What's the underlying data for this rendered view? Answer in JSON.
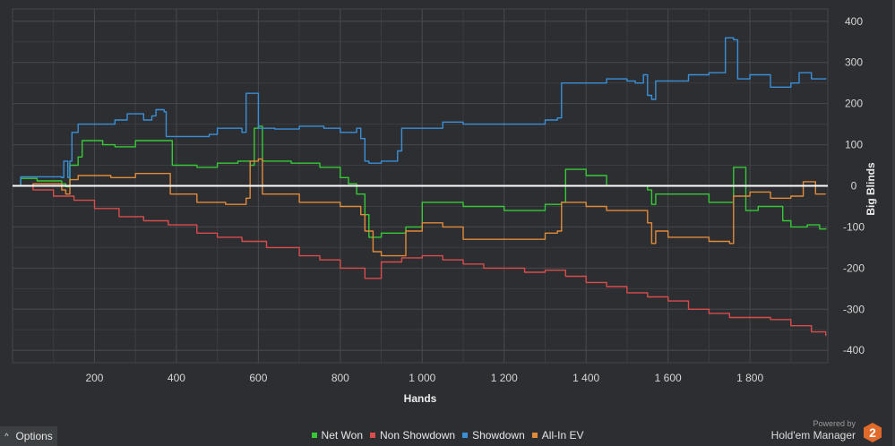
{
  "chart_data": {
    "type": "line",
    "xlabel": "Hands",
    "ylabel": "Big Blinds",
    "xlim": [
      0,
      1990
    ],
    "ylim": [
      -430,
      430
    ],
    "x_ticks": [
      200,
      400,
      600,
      800,
      1000,
      1200,
      1400,
      1600,
      1800
    ],
    "x_tick_labels": [
      "200",
      "400",
      "600",
      "800",
      "1 000",
      "1 200",
      "1 400",
      "1 600",
      "1 800"
    ],
    "y_ticks": [
      400,
      300,
      200,
      100,
      0,
      -100,
      -200,
      -300,
      -400
    ],
    "y_tick_labels": [
      "400",
      "300",
      "200",
      "100",
      "0",
      "-100",
      "-200",
      "-300",
      "-400"
    ],
    "grid": true,
    "legend_position": "bottom",
    "series": [
      {
        "name": "Net Won",
        "color": "#37c837",
        "points": [
          [
            0,
            0
          ],
          [
            20,
            18
          ],
          [
            60,
            12
          ],
          [
            120,
            5
          ],
          [
            130,
            -2
          ],
          [
            140,
            50
          ],
          [
            160,
            70
          ],
          [
            170,
            110
          ],
          [
            220,
            100
          ],
          [
            250,
            95
          ],
          [
            300,
            110
          ],
          [
            380,
            110
          ],
          [
            390,
            50
          ],
          [
            450,
            45
          ],
          [
            500,
            55
          ],
          [
            550,
            60
          ],
          [
            580,
            50
          ],
          [
            590,
            140
          ],
          [
            600,
            145
          ],
          [
            610,
            60
          ],
          [
            680,
            55
          ],
          [
            750,
            45
          ],
          [
            800,
            20
          ],
          [
            820,
            5
          ],
          [
            840,
            -20
          ],
          [
            860,
            -70
          ],
          [
            870,
            -125
          ],
          [
            900,
            -115
          ],
          [
            960,
            -100
          ],
          [
            1000,
            -40
          ],
          [
            1100,
            -50
          ],
          [
            1200,
            -60
          ],
          [
            1300,
            -45
          ],
          [
            1340,
            -40
          ],
          [
            1350,
            40
          ],
          [
            1400,
            25
          ],
          [
            1450,
            0
          ],
          [
            1550,
            -10
          ],
          [
            1560,
            -45
          ],
          [
            1570,
            -20
          ],
          [
            1620,
            -20
          ],
          [
            1700,
            -40
          ],
          [
            1750,
            -40
          ],
          [
            1760,
            45
          ],
          [
            1780,
            45
          ],
          [
            1790,
            -60
          ],
          [
            1820,
            -50
          ],
          [
            1880,
            -85
          ],
          [
            1900,
            -100
          ],
          [
            1940,
            -95
          ],
          [
            1970,
            -105
          ],
          [
            1985,
            -103
          ]
        ]
      },
      {
        "name": "Non Showdown",
        "color": "#d84c4c",
        "points": [
          [
            0,
            0
          ],
          [
            50,
            -10
          ],
          [
            100,
            -25
          ],
          [
            150,
            -35
          ],
          [
            200,
            -55
          ],
          [
            260,
            -75
          ],
          [
            320,
            -85
          ],
          [
            380,
            -95
          ],
          [
            450,
            -115
          ],
          [
            500,
            -125
          ],
          [
            560,
            -135
          ],
          [
            620,
            -150
          ],
          [
            700,
            -170
          ],
          [
            750,
            -180
          ],
          [
            800,
            -200
          ],
          [
            860,
            -225
          ],
          [
            900,
            -185
          ],
          [
            950,
            -175
          ],
          [
            1000,
            -170
          ],
          [
            1050,
            -180
          ],
          [
            1100,
            -190
          ],
          [
            1150,
            -200
          ],
          [
            1200,
            -200
          ],
          [
            1250,
            -210
          ],
          [
            1300,
            -205
          ],
          [
            1350,
            -220
          ],
          [
            1400,
            -235
          ],
          [
            1450,
            -245
          ],
          [
            1500,
            -260
          ],
          [
            1550,
            -270
          ],
          [
            1600,
            -280
          ],
          [
            1650,
            -300
          ],
          [
            1700,
            -310
          ],
          [
            1750,
            -320
          ],
          [
            1800,
            -320
          ],
          [
            1850,
            -325
          ],
          [
            1900,
            -340
          ],
          [
            1950,
            -355
          ],
          [
            1985,
            -365
          ]
        ]
      },
      {
        "name": "Showdown",
        "color": "#3a8fd8",
        "points": [
          [
            0,
            0
          ],
          [
            20,
            22
          ],
          [
            120,
            20
          ],
          [
            125,
            60
          ],
          [
            135,
            20
          ],
          [
            140,
            60
          ],
          [
            145,
            130
          ],
          [
            160,
            150
          ],
          [
            250,
            160
          ],
          [
            280,
            175
          ],
          [
            310,
            175
          ],
          [
            320,
            160
          ],
          [
            340,
            170
          ],
          [
            350,
            185
          ],
          [
            370,
            180
          ],
          [
            375,
            120
          ],
          [
            440,
            120
          ],
          [
            480,
            125
          ],
          [
            500,
            140
          ],
          [
            560,
            130
          ],
          [
            570,
            225
          ],
          [
            590,
            225
          ],
          [
            600,
            140
          ],
          [
            640,
            138
          ],
          [
            700,
            145
          ],
          [
            760,
            140
          ],
          [
            800,
            130
          ],
          [
            840,
            140
          ],
          [
            850,
            115
          ],
          [
            860,
            60
          ],
          [
            870,
            55
          ],
          [
            900,
            60
          ],
          [
            940,
            85
          ],
          [
            950,
            140
          ],
          [
            1000,
            140
          ],
          [
            1050,
            155
          ],
          [
            1100,
            150
          ],
          [
            1200,
            150
          ],
          [
            1300,
            160
          ],
          [
            1330,
            165
          ],
          [
            1340,
            250
          ],
          [
            1400,
            250
          ],
          [
            1450,
            260
          ],
          [
            1500,
            255
          ],
          [
            1520,
            250
          ],
          [
            1540,
            270
          ],
          [
            1550,
            220
          ],
          [
            1560,
            210
          ],
          [
            1570,
            255
          ],
          [
            1600,
            255
          ],
          [
            1650,
            270
          ],
          [
            1700,
            275
          ],
          [
            1730,
            275
          ],
          [
            1740,
            360
          ],
          [
            1760,
            355
          ],
          [
            1770,
            260
          ],
          [
            1800,
            270
          ],
          [
            1850,
            240
          ],
          [
            1900,
            250
          ],
          [
            1920,
            275
          ],
          [
            1950,
            260
          ],
          [
            1985,
            262
          ]
        ]
      },
      {
        "name": "All-In EV",
        "color": "#e08a3a",
        "points": [
          [
            0,
            0
          ],
          [
            50,
            5
          ],
          [
            120,
            -10
          ],
          [
            130,
            -20
          ],
          [
            140,
            15
          ],
          [
            160,
            25
          ],
          [
            240,
            20
          ],
          [
            300,
            30
          ],
          [
            380,
            30
          ],
          [
            385,
            -20
          ],
          [
            450,
            -40
          ],
          [
            520,
            -45
          ],
          [
            570,
            -30
          ],
          [
            580,
            60
          ],
          [
            600,
            65
          ],
          [
            610,
            -20
          ],
          [
            700,
            -40
          ],
          [
            800,
            -50
          ],
          [
            850,
            -70
          ],
          [
            860,
            -110
          ],
          [
            880,
            -160
          ],
          [
            900,
            -170
          ],
          [
            950,
            -170
          ],
          [
            960,
            -110
          ],
          [
            1000,
            -90
          ],
          [
            1050,
            -100
          ],
          [
            1100,
            -130
          ],
          [
            1200,
            -130
          ],
          [
            1300,
            -115
          ],
          [
            1330,
            -110
          ],
          [
            1340,
            -40
          ],
          [
            1400,
            -50
          ],
          [
            1450,
            -60
          ],
          [
            1550,
            -90
          ],
          [
            1560,
            -140
          ],
          [
            1570,
            -110
          ],
          [
            1600,
            -125
          ],
          [
            1700,
            -135
          ],
          [
            1750,
            -140
          ],
          [
            1760,
            -25
          ],
          [
            1800,
            -15
          ],
          [
            1850,
            -30
          ],
          [
            1900,
            -25
          ],
          [
            1930,
            10
          ],
          [
            1960,
            -20
          ],
          [
            1985,
            -20
          ]
        ]
      }
    ]
  },
  "footer": {
    "options_label": "Options",
    "options_chevron": "^",
    "powered_by": "Powered by",
    "brand_name": "Hold'em Manager",
    "brand_logo_number": "2",
    "brand_logo_color": "#e06a2a"
  },
  "colors": {
    "background": "#2c2e31",
    "grid": "#45484c",
    "zero_line": "#ffffff"
  }
}
